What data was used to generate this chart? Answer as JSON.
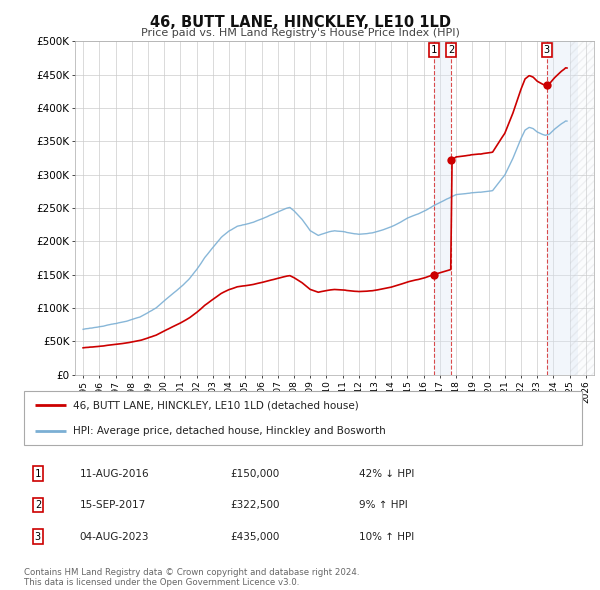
{
  "title": "46, BUTT LANE, HINCKLEY, LE10 1LD",
  "subtitle": "Price paid vs. HM Land Registry's House Price Index (HPI)",
  "legend_property": "46, BUTT LANE, HINCKLEY, LE10 1LD (detached house)",
  "legend_hpi": "HPI: Average price, detached house, Hinckley and Bosworth",
  "footer1": "Contains HM Land Registry data © Crown copyright and database right 2024.",
  "footer2": "This data is licensed under the Open Government Licence v3.0.",
  "xlim": [
    1994.5,
    2026.5
  ],
  "ylim": [
    0,
    500000
  ],
  "yticks": [
    0,
    50000,
    100000,
    150000,
    200000,
    250000,
    300000,
    350000,
    400000,
    450000,
    500000
  ],
  "ytick_labels": [
    "£0",
    "£50K",
    "£100K",
    "£150K",
    "£200K",
    "£250K",
    "£300K",
    "£350K",
    "£400K",
    "£450K",
    "£500K"
  ],
  "property_color": "#cc0000",
  "hpi_color": "#7bafd4",
  "vline_color": "#cc0000",
  "shade_color": "#dce8f5",
  "hatch_color": "#cccccc",
  "t1_year": 2016.61,
  "t1_price": 150000,
  "t2_year": 2017.71,
  "t2_price": 322500,
  "t3_year": 2023.59,
  "t3_price": 435000,
  "t1_date": "11-AUG-2016",
  "t2_date": "15-SEP-2017",
  "t3_date": "04-AUG-2023",
  "t1_pct": "42% ↓ HPI",
  "t2_pct": "9% ↑ HPI",
  "t3_pct": "10% ↑ HPI"
}
